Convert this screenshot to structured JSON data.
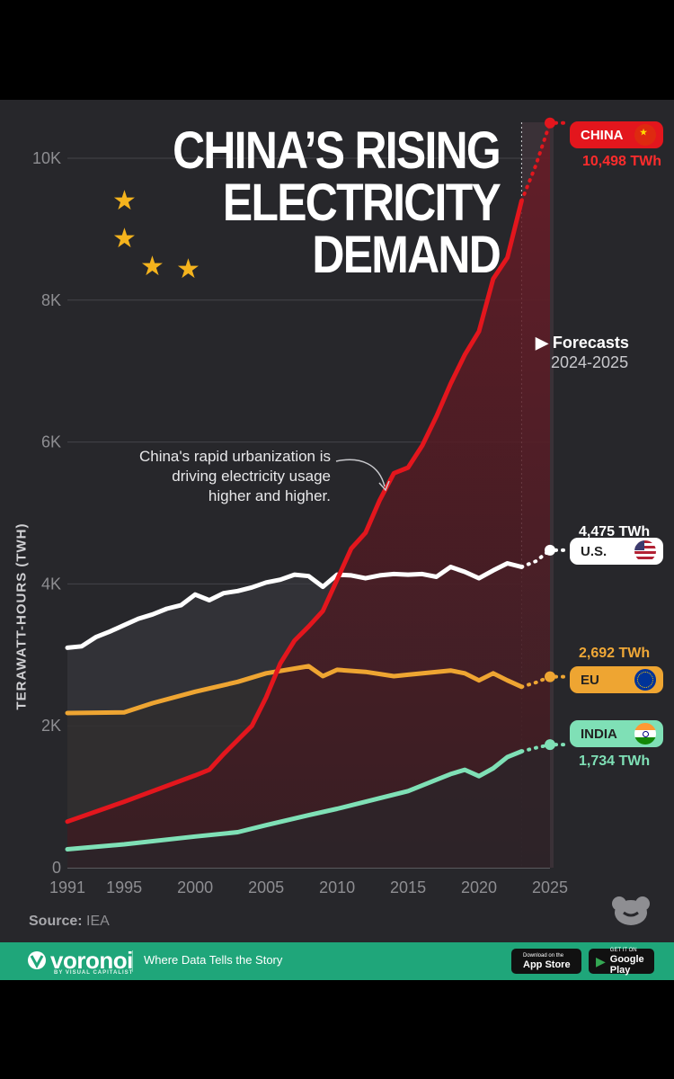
{
  "title": {
    "line1": "CHINA’S RISING",
    "line2": "ELECTRICITY",
    "line3": "DEMAND"
  },
  "y_axis_label": "TERAWATT-HOURS (TWH)",
  "annotation": "China's rapid urbanization is driving electricity usage higher and higher.",
  "forecast_label": {
    "title": "Forecasts",
    "range": "2024-2025"
  },
  "labels": {
    "china": {
      "name": "CHINA",
      "value": "10,498 TWh"
    },
    "us": {
      "name": "U.S.",
      "value": "4,475 TWh"
    },
    "eu": {
      "name": "EU",
      "value": "2,692 TWh"
    },
    "india": {
      "name": "INDIA",
      "value": "1,734 TWh"
    }
  },
  "colors": {
    "china": "#e3161d",
    "us": "#ffffff",
    "eu": "#eea532",
    "india": "#7fe0b6",
    "background": "#27272b",
    "footer": "#1fa67a"
  },
  "source": {
    "label": "Source:",
    "value": "IEA"
  },
  "footer": {
    "brand": "voronoi",
    "brand_sub": "BY VISUAL CAPITALIST",
    "tagline": "Where Data Tells the Story",
    "app_store": {
      "small": "Download on the",
      "big": "App Store"
    },
    "google_play": {
      "small": "GET IT ON",
      "big": "Google Play"
    }
  },
  "chart_data": {
    "type": "line",
    "title": "China's Rising Electricity Demand",
    "xlabel": "",
    "ylabel": "Terawatt-hours (TWh)",
    "x_ticks": [
      "1991",
      "1995",
      "2000",
      "2005",
      "2010",
      "2015",
      "2020",
      "2025"
    ],
    "y_ticks": [
      "0",
      "2K",
      "4K",
      "6K",
      "8K",
      "10K"
    ],
    "xlim": [
      1991,
      2025
    ],
    "ylim": [
      0,
      10000
    ],
    "forecast_start": 2023,
    "series": [
      {
        "name": "China",
        "key": "china",
        "points": [
          [
            1991,
            650
          ],
          [
            1995,
            930
          ],
          [
            2000,
            1300
          ],
          [
            2001,
            1380
          ],
          [
            2002,
            1600
          ],
          [
            2003,
            1800
          ],
          [
            2004,
            2000
          ],
          [
            2005,
            2400
          ],
          [
            2006,
            2880
          ],
          [
            2007,
            3200
          ],
          [
            2008,
            3400
          ],
          [
            2009,
            3620
          ],
          [
            2010,
            4060
          ],
          [
            2011,
            4500
          ],
          [
            2012,
            4720
          ],
          [
            2013,
            5180
          ],
          [
            2014,
            5560
          ],
          [
            2015,
            5640
          ],
          [
            2016,
            5950
          ],
          [
            2017,
            6360
          ],
          [
            2018,
            6820
          ],
          [
            2019,
            7230
          ],
          [
            2020,
            7560
          ],
          [
            2021,
            8300
          ],
          [
            2022,
            8600
          ],
          [
            2023,
            9400
          ]
        ],
        "forecast": [
          [
            2023,
            9400
          ],
          [
            2024,
            9900
          ],
          [
            2025,
            10498
          ]
        ]
      },
      {
        "name": "U.S.",
        "key": "us",
        "points": [
          [
            1991,
            3100
          ],
          [
            1992,
            3120
          ],
          [
            1993,
            3250
          ],
          [
            1994,
            3330
          ],
          [
            1995,
            3420
          ],
          [
            1996,
            3510
          ],
          [
            1997,
            3570
          ],
          [
            1998,
            3650
          ],
          [
            1999,
            3700
          ],
          [
            2000,
            3850
          ],
          [
            2001,
            3770
          ],
          [
            2002,
            3870
          ],
          [
            2003,
            3900
          ],
          [
            2004,
            3950
          ],
          [
            2005,
            4020
          ],
          [
            2006,
            4060
          ],
          [
            2007,
            4130
          ],
          [
            2008,
            4110
          ],
          [
            2009,
            3960
          ],
          [
            2010,
            4130
          ],
          [
            2011,
            4120
          ],
          [
            2012,
            4080
          ],
          [
            2013,
            4120
          ],
          [
            2014,
            4140
          ],
          [
            2015,
            4130
          ],
          [
            2016,
            4140
          ],
          [
            2017,
            4100
          ],
          [
            2018,
            4240
          ],
          [
            2019,
            4170
          ],
          [
            2020,
            4080
          ],
          [
            2021,
            4190
          ],
          [
            2022,
            4290
          ],
          [
            2023,
            4240
          ]
        ],
        "forecast": [
          [
            2023,
            4240
          ],
          [
            2024,
            4320
          ],
          [
            2025,
            4475
          ]
        ]
      },
      {
        "name": "EU",
        "key": "eu",
        "points": [
          [
            1991,
            2180
          ],
          [
            1995,
            2190
          ],
          [
            1997,
            2320
          ],
          [
            2000,
            2480
          ],
          [
            2003,
            2620
          ],
          [
            2005,
            2740
          ],
          [
            2008,
            2840
          ],
          [
            2009,
            2700
          ],
          [
            2010,
            2790
          ],
          [
            2012,
            2760
          ],
          [
            2014,
            2700
          ],
          [
            2015,
            2720
          ],
          [
            2018,
            2780
          ],
          [
            2019,
            2740
          ],
          [
            2020,
            2640
          ],
          [
            2021,
            2740
          ],
          [
            2022,
            2640
          ],
          [
            2023,
            2550
          ]
        ],
        "forecast": [
          [
            2023,
            2550
          ],
          [
            2024,
            2610
          ],
          [
            2025,
            2692
          ]
        ]
      },
      {
        "name": "India",
        "key": "india",
        "points": [
          [
            1991,
            260
          ],
          [
            1995,
            330
          ],
          [
            2000,
            440
          ],
          [
            2003,
            500
          ],
          [
            2005,
            600
          ],
          [
            2008,
            740
          ],
          [
            2010,
            830
          ],
          [
            2013,
            980
          ],
          [
            2015,
            1080
          ],
          [
            2017,
            1240
          ],
          [
            2018,
            1320
          ],
          [
            2019,
            1380
          ],
          [
            2020,
            1290
          ],
          [
            2021,
            1400
          ],
          [
            2022,
            1560
          ],
          [
            2023,
            1640
          ]
        ],
        "forecast": [
          [
            2023,
            1640
          ],
          [
            2024,
            1690
          ],
          [
            2025,
            1734
          ]
        ]
      }
    ]
  }
}
